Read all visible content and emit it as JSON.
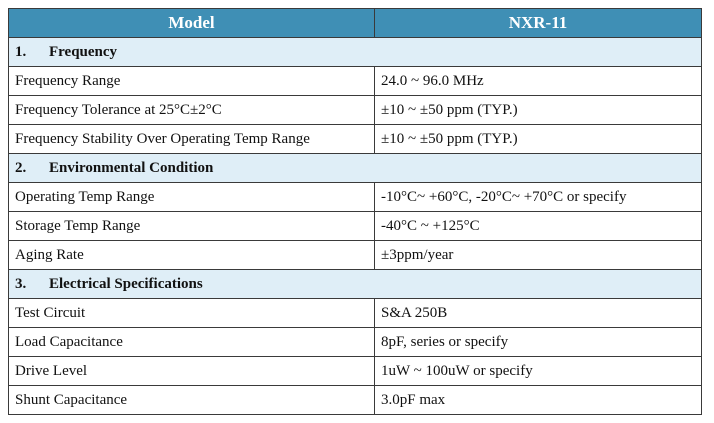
{
  "header": {
    "col1": "Model",
    "col2": "NXR-11"
  },
  "sections": [
    {
      "num": "1.",
      "title": "Frequency",
      "rows": [
        {
          "label": "Frequency Range",
          "value": "24.0 ~ 96.0 MHz"
        },
        {
          "label": "Frequency Tolerance at 25°C±2°C",
          "value": "±10 ~ ±50 ppm (TYP.)"
        },
        {
          "label": "Frequency Stability Over Operating Temp Range",
          "value": "±10 ~ ±50 ppm (TYP.)"
        }
      ]
    },
    {
      "num": "2.",
      "title": "Environmental Condition",
      "rows": [
        {
          "label": "Operating Temp Range",
          "value": "-10°C~ +60°C, -20°C~ +70°C or specify"
        },
        {
          "label": "Storage Temp Range",
          "value": "-40°C ~ +125°C"
        },
        {
          "label": "Aging Rate",
          "value": "±3ppm/year"
        }
      ]
    },
    {
      "num": "3.",
      "title": "Electrical Specifications",
      "rows": [
        {
          "label": "Test Circuit",
          "value": "S&A 250B"
        },
        {
          "label": "Load Capacitance",
          "value": "8pF, series or specify"
        },
        {
          "label": "Drive Level",
          "value": "1uW ~ 100uW or specify"
        },
        {
          "label": "Shunt Capacitance",
          "value": "3.0pF max"
        }
      ]
    }
  ]
}
